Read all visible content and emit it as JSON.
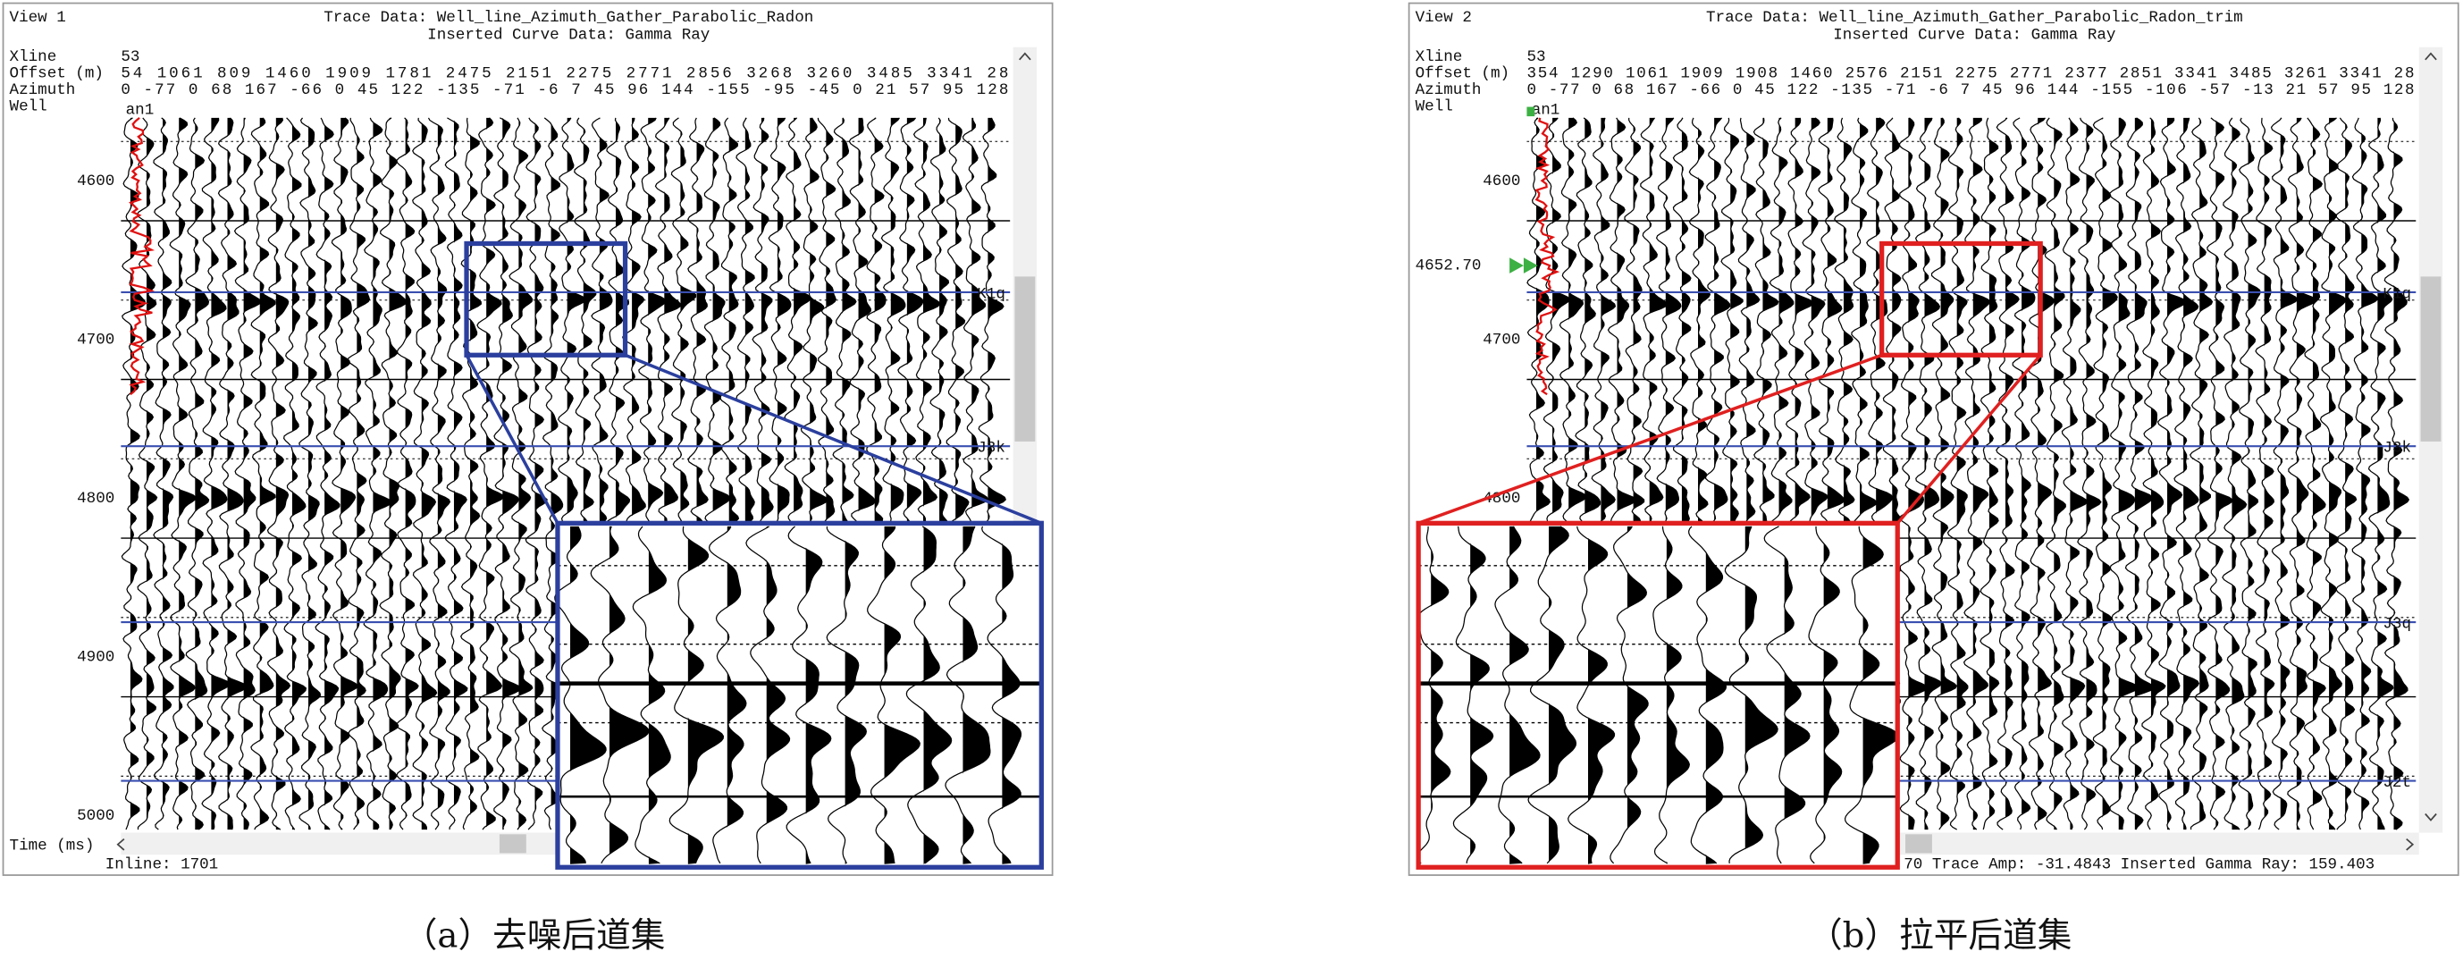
{
  "panels": [
    {
      "view": "View 1",
      "trace_data": "Trace Data: Well_line_Azimuth_Gather_Parabolic_Radon",
      "curve_data": "Inserted Curve Data: Gamma Ray",
      "header_labels": [
        "Xline",
        "Offset (m)",
        "Azimuth",
        "Well"
      ],
      "xline": "53",
      "offsets": "54 1061 809 1460 1909 1781 2475 2151 2275 2771 2856 3268 3260 3485 3341 28",
      "azimuths": "0 -77 0 68 167 -66 0 45 122 -135 -71 -6 7 45 96 144 -155 -95 -45 0 21 57 95 128",
      "well": "an1",
      "time_ticks": [
        4600,
        4700,
        4800,
        4900,
        5000
      ],
      "horizons": [
        "K1q",
        "J3k"
      ],
      "axis_label": "Time (ms)",
      "status": "Inline: 1701",
      "caption": "（a）去噪后道集"
    },
    {
      "view": "View 2",
      "trace_data": "Trace Data: Well_line_Azimuth_Gather_Parabolic_Radon_trim",
      "curve_data": "Inserted Curve Data: Gamma Ray",
      "header_labels": [
        "Xline",
        "Offset (m)",
        "Azimuth",
        "Well"
      ],
      "xline": "53",
      "offsets": "354 1290 1061 1909 1908 1460 2576 2151 2275 2771 2377 2851 3341 3485 3261 3341 28",
      "azimuths": "0 -77 0 68 167 -66 0 45 122 -135 -71 -6 7 45 96 144 -155 -106 -57 -13 21 57 95 128",
      "well": "an1",
      "well_pick": "4652.70",
      "time_ticks": [
        4600,
        4700,
        4800
      ],
      "horizons": [
        "K1q",
        "J3k",
        "J3q",
        "J2t"
      ],
      "status": "70 Trace Amp: -31.4843 Inserted Gamma Ray: 159.403",
      "caption": "（b）拉平后道集"
    }
  ]
}
